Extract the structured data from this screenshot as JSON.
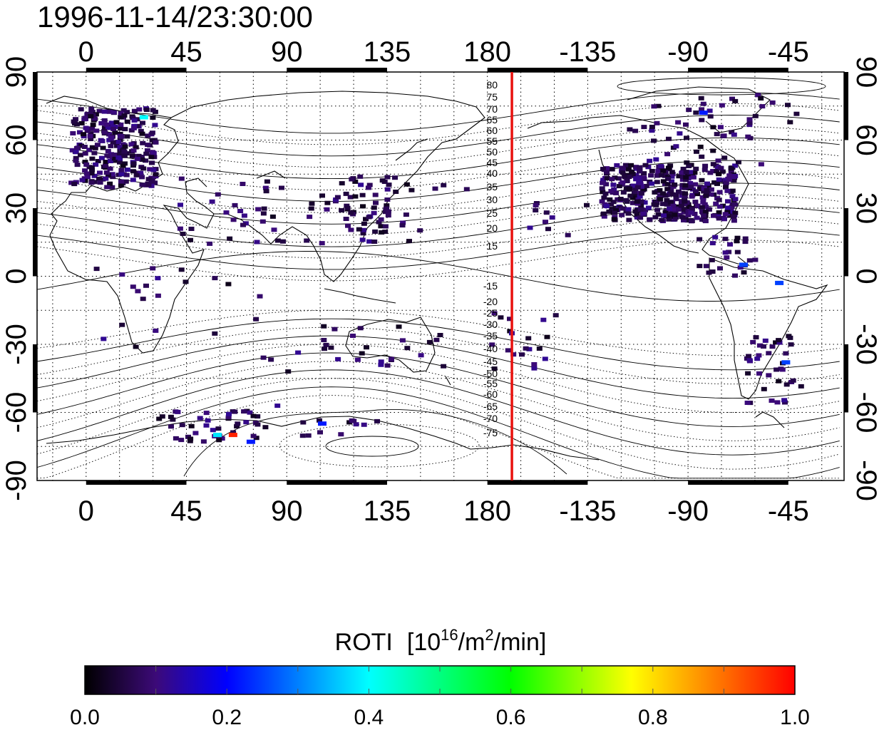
{
  "title": "1996-11-14/23:30:00",
  "map": {
    "projection": "cylindrical",
    "lon_ticks_top": [
      "0",
      "45",
      "90",
      "135",
      "180",
      "-135",
      "-90",
      "-45"
    ],
    "lon_ticks_bottom": [
      "0",
      "45",
      "90",
      "135",
      "180",
      "-135",
      "-90",
      "-45"
    ],
    "lat_ticks_left": [
      "90",
      "60",
      "30",
      "0",
      "-30",
      "-60",
      "-90"
    ],
    "lat_ticks_right": [
      "90",
      "60",
      "30",
      "0",
      "-30",
      "-60",
      "-90"
    ],
    "grid": "dotted, 15 degree spacing",
    "meridian_marker": {
      "lon": 191,
      "color": "#e8110e"
    },
    "contour_labels_north": [
      "80",
      "75",
      "70",
      "65",
      "60",
      "55",
      "50",
      "45",
      "40",
      "35",
      "30",
      "25",
      "20",
      "15"
    ],
    "contour_labels_south": [
      "-15",
      "-20",
      "-25",
      "-30",
      "-35",
      "-40",
      "-45",
      "-50",
      "-55",
      "-60",
      "-65",
      "-70",
      "-75"
    ]
  },
  "colorbar": {
    "title": "ROTI",
    "unit_open": "[10",
    "unit_exp1": "16",
    "unit_mid": "/m",
    "unit_exp2": "2",
    "unit_close": "/min]",
    "tick_labels": [
      "0.0",
      "0.2",
      "0.4",
      "0.6",
      "0.8",
      "1.0"
    ],
    "range": [
      0.0,
      1.0
    ],
    "colors": [
      "#000000",
      "#3c0a78",
      "#0000ff",
      "#00ffff",
      "#00ff00",
      "#ffff00",
      "#ff0000"
    ]
  },
  "chart_data": {
    "type": "heatmap",
    "title": "1996-11-14/23:30:00",
    "value_label": "ROTI",
    "value_range": [
      0,
      1
    ],
    "x_range": [
      -22,
      340
    ],
    "y_range": [
      -90,
      90
    ],
    "notable_cells": [
      {
        "lon": 24,
        "lat": 71,
        "value": 0.4
      },
      {
        "lon": 57,
        "lat": -69,
        "value": 0.38
      },
      {
        "lon": 64,
        "lat": -69,
        "value": 0.97
      },
      {
        "lon": 72,
        "lat": -72,
        "value": 0.22
      },
      {
        "lon": 104,
        "lat": -64,
        "value": 0.22
      },
      {
        "lon": 275,
        "lat": 73,
        "value": 0.22
      },
      {
        "lon": 293,
        "lat": 6,
        "value": 0.25
      },
      {
        "lon": 312,
        "lat": -37,
        "value": 0.25
      },
      {
        "lon": 309,
        "lat": -2,
        "value": 0.25
      }
    ]
  }
}
